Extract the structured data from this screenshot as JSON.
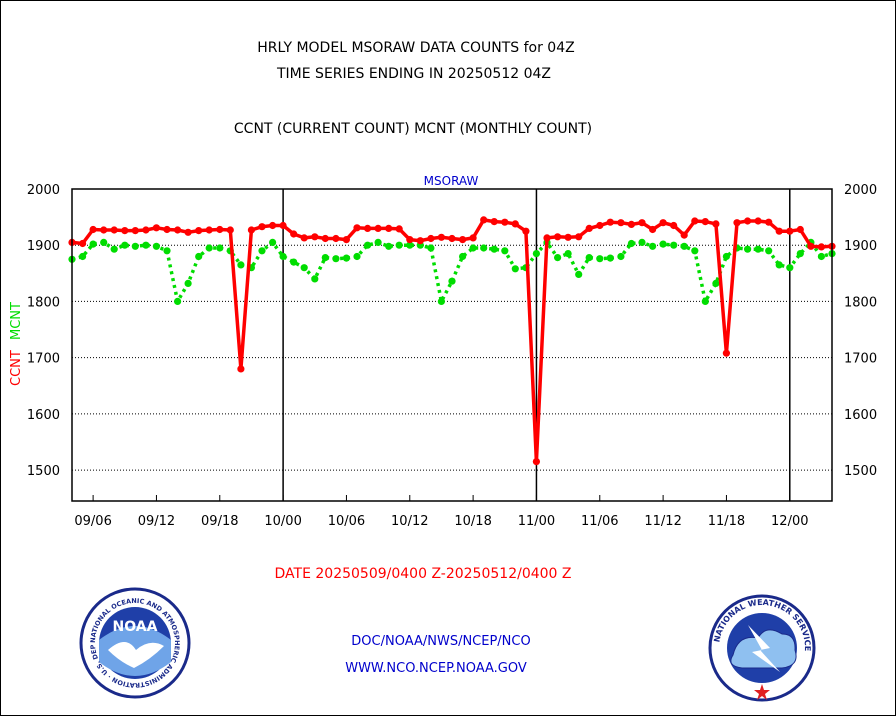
{
  "header": {
    "line1": "HRLY MODEL MSORAW DATA COUNTS for 04Z",
    "line2": "TIME SERIES ENDING IN 20250512 04Z",
    "line3": "CCNT (CURRENT COUNT) MCNT (MONTHLY COUNT)"
  },
  "footer": {
    "date_range": "DATE 20250509/0400 Z-20250512/0400 Z",
    "org": "DOC/NOAA/NWS/NCEP/NCO",
    "url": "WWW.NCO.NCEP.NOAA.GOV"
  },
  "logos": {
    "noaa_center_text": "NOAA",
    "noaa_ring_text": "NATIONAL OCEANIC AND ATMOSPHERIC ADMINISTRATION · U.S. DEPARTMENT OF COMMERCE ·",
    "nws_ring_text": "NATIONAL WEATHER SERVICE"
  },
  "colors": {
    "ccnt": "#ff0000",
    "mcnt": "#00dd00",
    "text": "#000000",
    "footer_red": "#ff0000",
    "footer_blue": "#0000cc",
    "plot_label": "#0000cc"
  },
  "chart_data": {
    "type": "line",
    "plot_label": "MSORAW",
    "ylabel_ccnt": "CCNT",
    "ylabel_mcnt": "MCNT",
    "ylim": [
      1445,
      2000
    ],
    "yticks": [
      1500,
      1600,
      1700,
      1800,
      1900,
      2000
    ],
    "grid": true,
    "x_ticks": [
      "09/06",
      "09/12",
      "09/18",
      "10/00",
      "10/06",
      "10/12",
      "10/18",
      "11/00",
      "11/06",
      "11/12",
      "11/18",
      "12/00"
    ],
    "x_tick_hours": [
      2,
      8,
      14,
      20,
      26,
      32,
      38,
      44,
      50,
      56,
      62,
      68
    ],
    "x_range_hours": [
      0,
      72
    ],
    "series": [
      {
        "name": "CCNT",
        "color": "#ff0000",
        "style": "solid",
        "x": [
          0,
          1,
          2,
          3,
          4,
          5,
          6,
          7,
          8,
          9,
          10,
          11,
          12,
          13,
          14,
          15,
          16,
          17,
          18,
          19,
          20,
          21,
          22,
          23,
          24,
          25,
          26,
          27,
          28,
          29,
          30,
          31,
          32,
          33,
          34,
          35,
          36,
          37,
          38,
          39,
          40,
          41,
          42,
          43,
          44,
          45,
          46,
          47,
          48,
          49,
          50,
          51,
          52,
          53,
          54,
          55,
          56,
          57,
          58,
          59,
          60,
          61,
          62,
          63,
          64,
          65,
          66,
          67,
          68,
          69,
          70,
          71,
          72
        ],
        "values": [
          1905,
          1903,
          1928,
          1927,
          1927,
          1926,
          1926,
          1927,
          1931,
          1928,
          1927,
          1923,
          1926,
          1927,
          1928,
          1927,
          1680,
          1927,
          1933,
          1935,
          1935,
          1920,
          1913,
          1915,
          1912,
          1912,
          1910,
          1931,
          1930,
          1930,
          1930,
          1929,
          1910,
          1908,
          1912,
          1914,
          1912,
          1910,
          1913,
          1945,
          1942,
          1941,
          1938,
          1925,
          1515,
          1913,
          1915,
          1914,
          1915,
          1930,
          1935,
          1941,
          1940,
          1937,
          1940,
          1928,
          1940,
          1935,
          1918,
          1943,
          1942,
          1938,
          1708,
          1940,
          1943,
          1943,
          1941,
          1925,
          1925,
          1928,
          1898,
          1897,
          1898
        ]
      },
      {
        "name": "MCNT",
        "color": "#00dd00",
        "style": "dotted",
        "x": [
          0,
          1,
          2,
          3,
          4,
          5,
          6,
          7,
          8,
          9,
          10,
          11,
          12,
          13,
          14,
          15,
          16,
          17,
          18,
          19,
          20,
          21,
          22,
          23,
          24,
          25,
          26,
          27,
          28,
          29,
          30,
          31,
          32,
          33,
          34,
          35,
          36,
          37,
          38,
          39,
          40,
          41,
          42,
          43,
          44,
          45,
          46,
          47,
          48,
          49,
          50,
          51,
          52,
          53,
          54,
          55,
          56,
          57,
          58,
          59,
          60,
          61,
          62,
          63,
          64,
          65,
          66,
          67,
          68,
          69,
          70,
          71,
          72
        ],
        "values": [
          1875,
          1880,
          1902,
          1905,
          1893,
          1900,
          1898,
          1900,
          1898,
          1890,
          1800,
          1832,
          1880,
          1895,
          1895,
          1890,
          1865,
          1860,
          1890,
          1905,
          1880,
          1870,
          1860,
          1840,
          1878,
          1876,
          1877,
          1880,
          1900,
          1905,
          1898,
          1900,
          1900,
          1900,
          1895,
          1800,
          1836,
          1880,
          1895,
          1895,
          1893,
          1890,
          1858,
          1860,
          1885,
          1905,
          1878,
          1885,
          1848,
          1878,
          1876,
          1877,
          1880,
          1903,
          1905,
          1898,
          1902,
          1900,
          1898,
          1890,
          1800,
          1832,
          1880,
          1895,
          1893,
          1893,
          1890,
          1865,
          1860,
          1885,
          1905,
          1880,
          1885
        ]
      }
    ]
  }
}
